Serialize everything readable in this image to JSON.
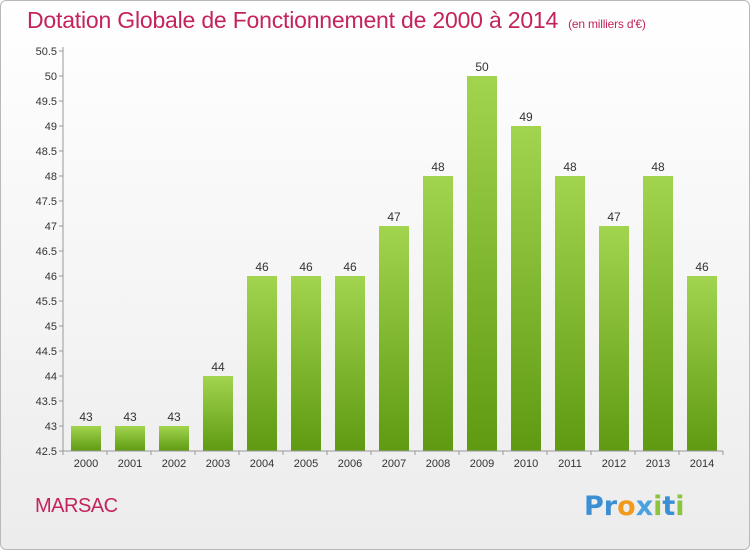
{
  "header": {
    "title": "Dotation Globale de Fonctionnement de 2000 à 2014",
    "subtitle": "(en milliers d'€)"
  },
  "footer": {
    "city": "MARSAC",
    "logo_text": "Proxiti"
  },
  "colors": {
    "accent": "#c4235d",
    "bar_top": "#a2d44f",
    "bar_bottom": "#5f9a12",
    "logo_letters": [
      "#3b8fd4",
      "#3b8fd4",
      "#f29a1e",
      "#4aa3df",
      "#8bc53f",
      "#3b8fd4",
      "#8bc53f"
    ]
  },
  "chart_data": {
    "type": "bar",
    "title": "Dotation Globale de Fonctionnement de 2000 à 2014",
    "subtitle": "(en milliers d'€)",
    "categories": [
      "2000",
      "2001",
      "2002",
      "2003",
      "2004",
      "2005",
      "2006",
      "2007",
      "2008",
      "2009",
      "2010",
      "2011",
      "2012",
      "2013",
      "2014"
    ],
    "values": [
      43,
      43,
      43,
      44,
      46,
      46,
      46,
      47,
      48,
      50,
      49,
      48,
      47,
      48,
      46
    ],
    "xlabel": "",
    "ylabel": "",
    "ylim": [
      42.5,
      50.5
    ],
    "yticks": [
      "42.5",
      "43",
      "43.5",
      "44",
      "44.5",
      "45",
      "45.5",
      "46",
      "46.5",
      "47",
      "47.5",
      "48",
      "48.5",
      "49",
      "49.5",
      "50",
      "50.5"
    ],
    "grid": false,
    "legend": "none"
  }
}
